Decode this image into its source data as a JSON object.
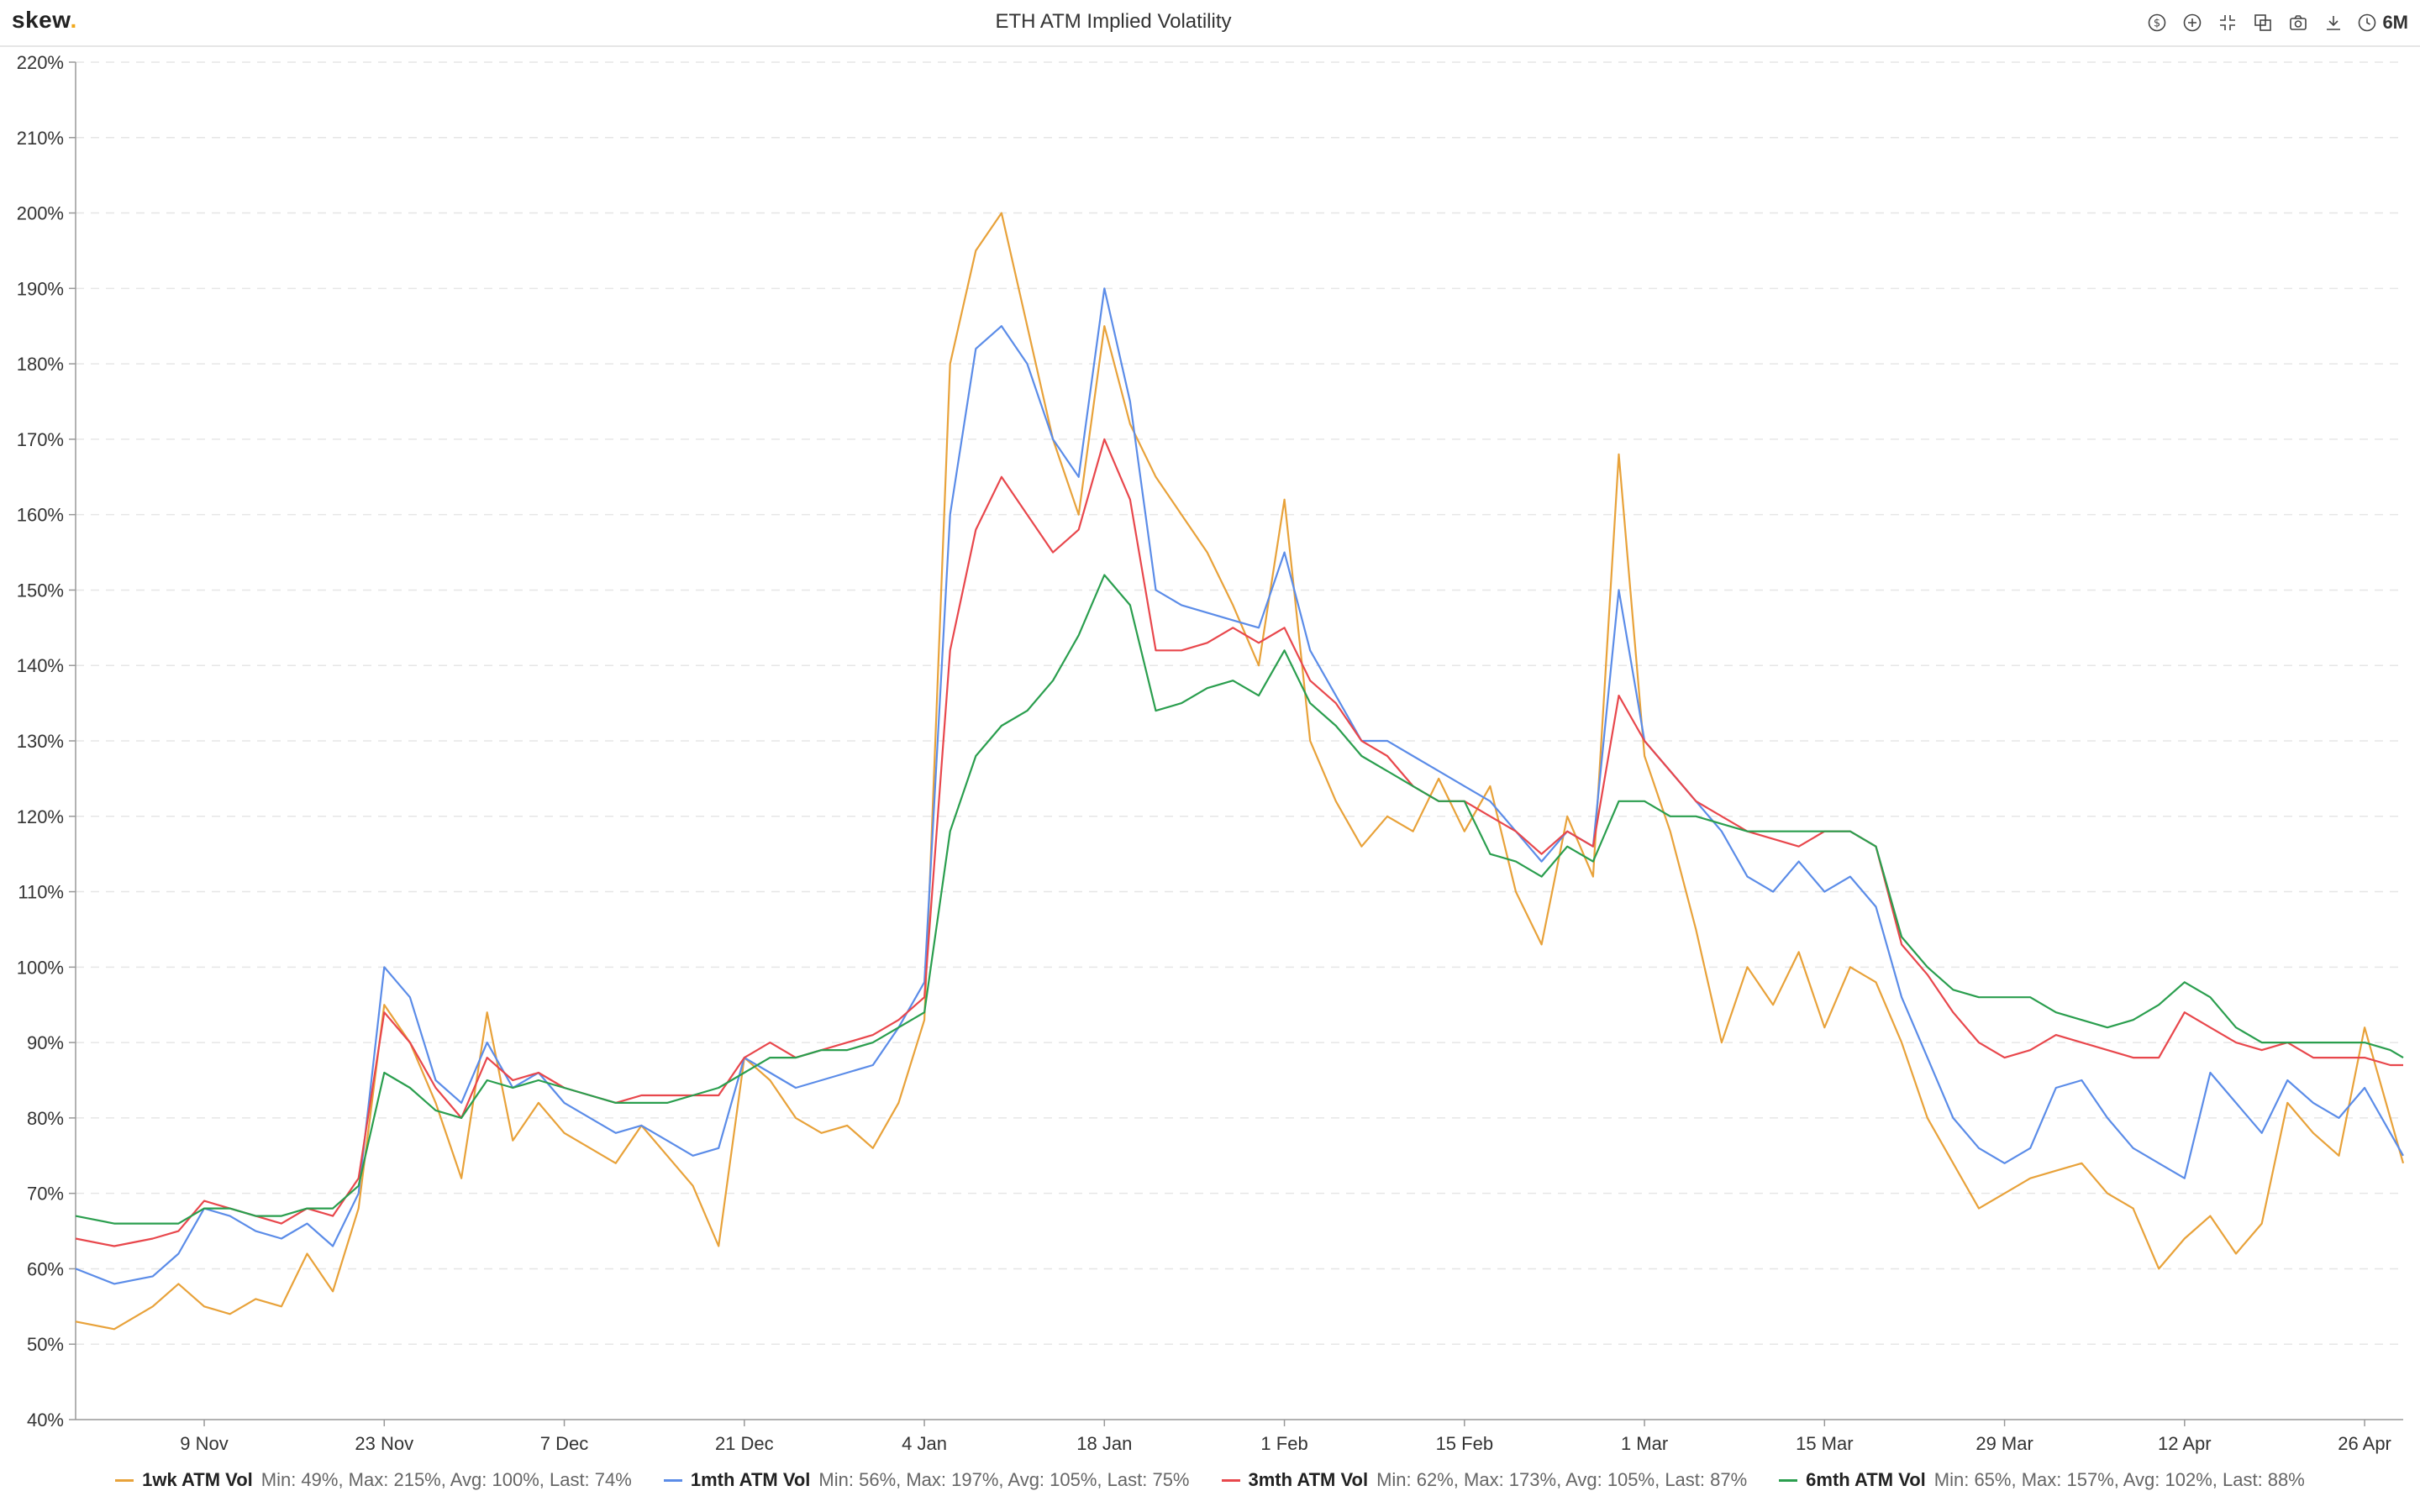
{
  "header": {
    "logo_text": "skew",
    "logo_dot": ".",
    "title": "ETH ATM Implied Volatility",
    "period_label": "6M",
    "icons": [
      "dollar-icon",
      "add-icon",
      "collapse-icon",
      "copy-icon",
      "camera-icon",
      "download-icon",
      "clock-icon"
    ]
  },
  "colors": {
    "1wk": "#e8a23a",
    "1mth": "#5b8ce8",
    "3mth": "#e8474c",
    "6mth": "#2a9e4e",
    "grid": "#e6e6e6",
    "axis": "#333333"
  },
  "legend": [
    {
      "key": "1wk",
      "name": "1wk ATM Vol",
      "stats": "Min: 49%, Max: 215%, Avg: 100%, Last: 74%"
    },
    {
      "key": "1mth",
      "name": "1mth ATM Vol",
      "stats": "Min: 56%, Max: 197%, Avg: 105%, Last: 75%"
    },
    {
      "key": "3mth",
      "name": "3mth ATM Vol",
      "stats": "Min: 62%, Max: 173%, Avg: 105%, Last: 87%"
    },
    {
      "key": "6mth",
      "name": "6mth ATM Vol",
      "stats": "Min: 65%, Max: 157%, Avg: 102%, Last: 88%"
    }
  ],
  "chart_data": {
    "type": "line",
    "title": "ETH ATM Implied Volatility",
    "xlabel": "",
    "ylabel": "",
    "ylim": [
      40,
      220
    ],
    "yticks": [
      40,
      50,
      60,
      70,
      80,
      90,
      100,
      110,
      120,
      130,
      140,
      150,
      160,
      170,
      180,
      190,
      200,
      210,
      220
    ],
    "ytick_suffix": "%",
    "xlim": [
      "2020-10-30",
      "2021-04-29"
    ],
    "xticks": [
      {
        "date": "2020-11-09",
        "label": "9 Nov"
      },
      {
        "date": "2020-11-23",
        "label": "23 Nov"
      },
      {
        "date": "2020-12-07",
        "label": "7 Dec"
      },
      {
        "date": "2020-12-21",
        "label": "21 Dec"
      },
      {
        "date": "2021-01-04",
        "label": "4 Jan"
      },
      {
        "date": "2021-01-18",
        "label": "18 Jan"
      },
      {
        "date": "2021-02-01",
        "label": "1 Feb"
      },
      {
        "date": "2021-02-15",
        "label": "15 Feb"
      },
      {
        "date": "2021-03-01",
        "label": "1 Mar"
      },
      {
        "date": "2021-03-15",
        "label": "15 Mar"
      },
      {
        "date": "2021-03-29",
        "label": "29 Mar"
      },
      {
        "date": "2021-04-12",
        "label": "12 Apr"
      },
      {
        "date": "2021-04-26",
        "label": "26 Apr"
      }
    ],
    "grid": true,
    "legend_position": "bottom",
    "x": [
      "2020-10-30",
      "2020-11-02",
      "2020-11-05",
      "2020-11-07",
      "2020-11-09",
      "2020-11-11",
      "2020-11-13",
      "2020-11-15",
      "2020-11-17",
      "2020-11-19",
      "2020-11-21",
      "2020-11-23",
      "2020-11-25",
      "2020-11-27",
      "2020-11-29",
      "2020-12-01",
      "2020-12-03",
      "2020-12-05",
      "2020-12-07",
      "2020-12-09",
      "2020-12-11",
      "2020-12-13",
      "2020-12-15",
      "2020-12-17",
      "2020-12-19",
      "2020-12-21",
      "2020-12-23",
      "2020-12-25",
      "2020-12-27",
      "2020-12-29",
      "2020-12-31",
      "2021-01-02",
      "2021-01-04",
      "2021-01-06",
      "2021-01-08",
      "2021-01-10",
      "2021-01-12",
      "2021-01-14",
      "2021-01-16",
      "2021-01-18",
      "2021-01-20",
      "2021-01-22",
      "2021-01-24",
      "2021-01-26",
      "2021-01-28",
      "2021-01-30",
      "2021-02-01",
      "2021-02-03",
      "2021-02-05",
      "2021-02-07",
      "2021-02-09",
      "2021-02-11",
      "2021-02-13",
      "2021-02-15",
      "2021-02-17",
      "2021-02-19",
      "2021-02-21",
      "2021-02-23",
      "2021-02-25",
      "2021-02-27",
      "2021-03-01",
      "2021-03-03",
      "2021-03-05",
      "2021-03-07",
      "2021-03-09",
      "2021-03-11",
      "2021-03-13",
      "2021-03-15",
      "2021-03-17",
      "2021-03-19",
      "2021-03-21",
      "2021-03-23",
      "2021-03-25",
      "2021-03-27",
      "2021-03-29",
      "2021-03-31",
      "2021-04-02",
      "2021-04-04",
      "2021-04-06",
      "2021-04-08",
      "2021-04-10",
      "2021-04-12",
      "2021-04-14",
      "2021-04-16",
      "2021-04-18",
      "2021-04-20",
      "2021-04-22",
      "2021-04-24",
      "2021-04-26",
      "2021-04-28",
      "2021-04-29"
    ],
    "series": [
      {
        "name": "1wk ATM Vol",
        "key": "1wk",
        "values": [
          53,
          52,
          55,
          58,
          55,
          54,
          56,
          55,
          62,
          57,
          68,
          95,
          90,
          82,
          72,
          94,
          77,
          82,
          78,
          76,
          74,
          79,
          75,
          71,
          63,
          88,
          85,
          80,
          78,
          79,
          76,
          82,
          93,
          180,
          195,
          200,
          185,
          170,
          160,
          185,
          172,
          165,
          160,
          155,
          148,
          140,
          162,
          130,
          122,
          116,
          120,
          118,
          125,
          118,
          124,
          110,
          103,
          120,
          112,
          168,
          128,
          118,
          105,
          90,
          100,
          95,
          102,
          92,
          100,
          98,
          90,
          80,
          74,
          68,
          70,
          72,
          73,
          74,
          70,
          68,
          60,
          64,
          67,
          62,
          66,
          82,
          78,
          75,
          92,
          80,
          74
        ]
      },
      {
        "name": "1mth ATM Vol",
        "key": "1mth",
        "values": [
          60,
          58,
          59,
          62,
          68,
          67,
          65,
          64,
          66,
          63,
          70,
          100,
          96,
          85,
          82,
          90,
          84,
          86,
          82,
          80,
          78,
          79,
          77,
          75,
          76,
          88,
          86,
          84,
          85,
          86,
          87,
          92,
          98,
          160,
          182,
          185,
          180,
          170,
          165,
          190,
          175,
          150,
          148,
          147,
          146,
          145,
          155,
          142,
          136,
          130,
          130,
          128,
          126,
          124,
          122,
          118,
          114,
          118,
          116,
          150,
          130,
          126,
          122,
          118,
          112,
          110,
          114,
          110,
          112,
          108,
          96,
          88,
          80,
          76,
          74,
          76,
          84,
          85,
          80,
          76,
          74,
          72,
          86,
          82,
          78,
          85,
          82,
          80,
          84,
          78,
          75
        ]
      },
      {
        "name": "3mth ATM Vol",
        "key": "3mth",
        "values": [
          64,
          63,
          64,
          65,
          69,
          68,
          67,
          66,
          68,
          67,
          72,
          94,
          90,
          84,
          80,
          88,
          85,
          86,
          84,
          83,
          82,
          83,
          83,
          83,
          83,
          88,
          90,
          88,
          89,
          90,
          91,
          93,
          96,
          142,
          158,
          165,
          160,
          155,
          158,
          170,
          162,
          142,
          142,
          143,
          145,
          143,
          145,
          138,
          135,
          130,
          128,
          124,
          122,
          122,
          120,
          118,
          115,
          118,
          116,
          136,
          130,
          126,
          122,
          120,
          118,
          117,
          116,
          118,
          118,
          116,
          103,
          99,
          94,
          90,
          88,
          89,
          91,
          90,
          89,
          88,
          88,
          94,
          92,
          90,
          89,
          90,
          88,
          88,
          88,
          87,
          87
        ]
      },
      {
        "name": "6mth ATM Vol",
        "key": "6mth",
        "values": [
          67,
          66,
          66,
          66,
          68,
          68,
          67,
          67,
          68,
          68,
          71,
          86,
          84,
          81,
          80,
          85,
          84,
          85,
          84,
          83,
          82,
          82,
          82,
          83,
          84,
          86,
          88,
          88,
          89,
          89,
          90,
          92,
          94,
          118,
          128,
          132,
          134,
          138,
          144,
          152,
          148,
          134,
          135,
          137,
          138,
          136,
          142,
          135,
          132,
          128,
          126,
          124,
          122,
          122,
          115,
          114,
          112,
          116,
          114,
          122,
          122,
          120,
          120,
          119,
          118,
          118,
          118,
          118,
          118,
          116,
          104,
          100,
          97,
          96,
          96,
          96,
          94,
          93,
          92,
          93,
          95,
          98,
          96,
          92,
          90,
          90,
          90,
          90,
          90,
          89,
          88
        ]
      }
    ]
  }
}
